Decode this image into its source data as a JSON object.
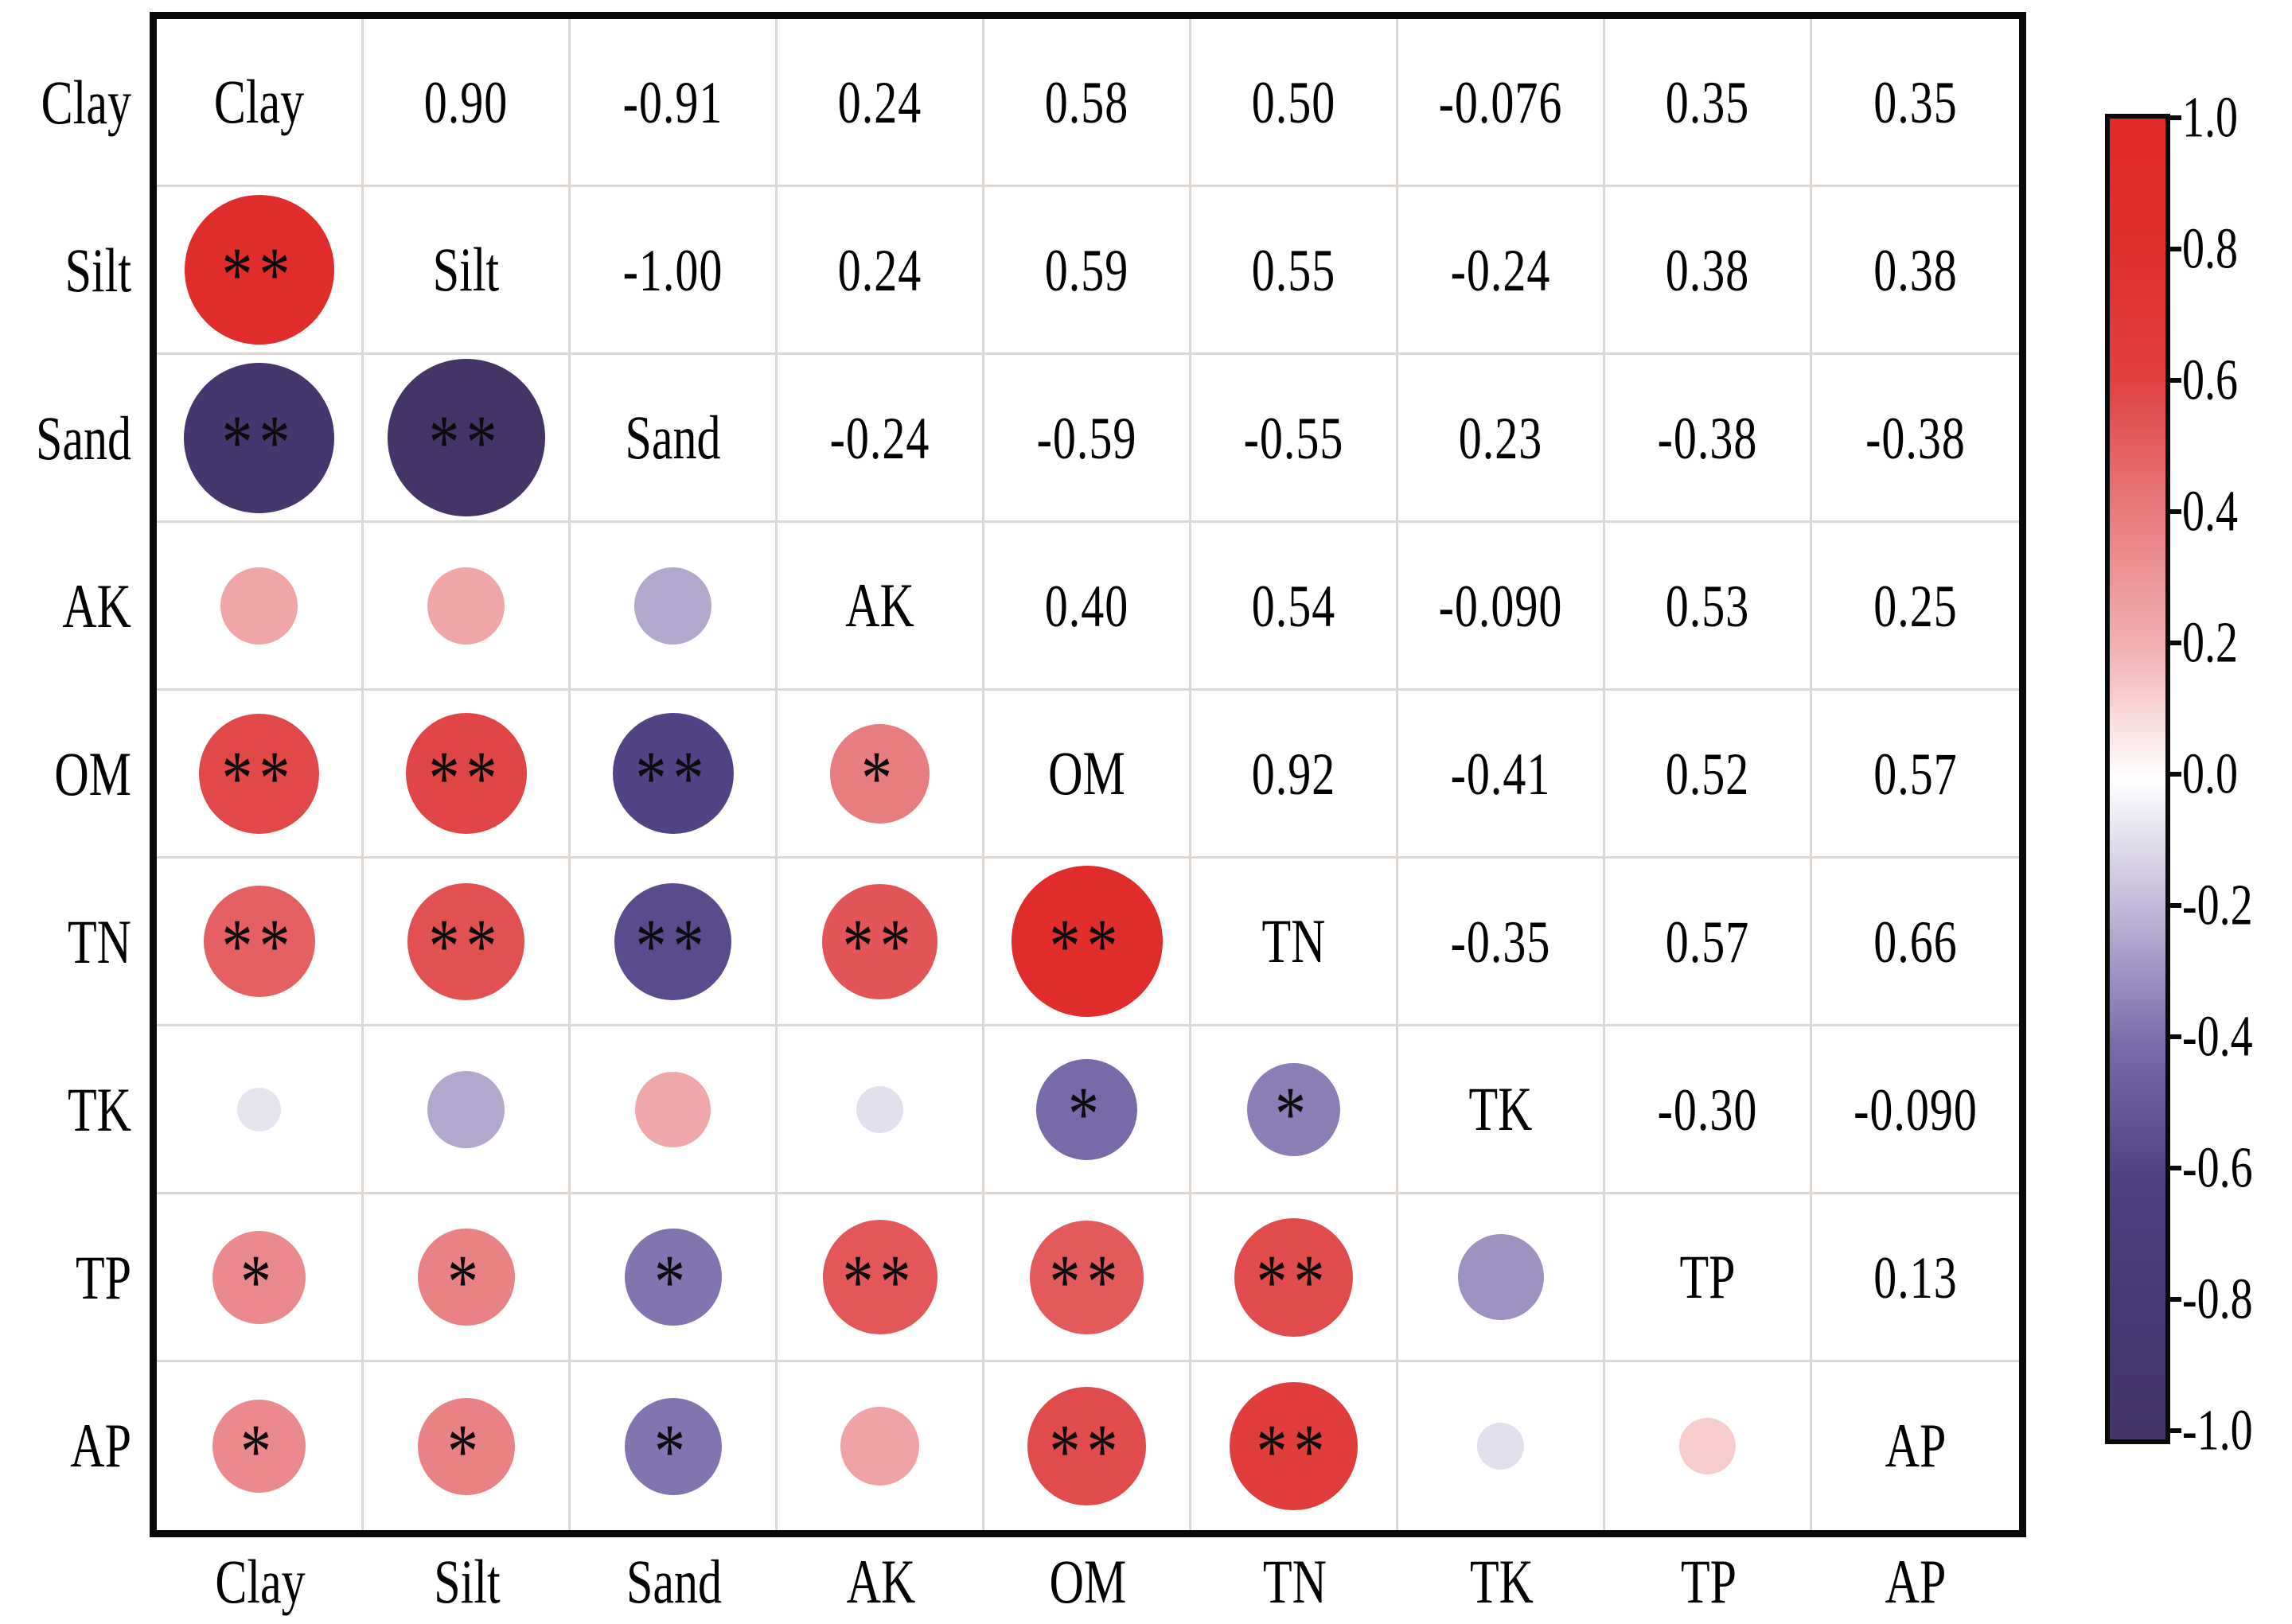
{
  "figure_type": "correlation-bubble-matrix",
  "chart_data": {
    "type": "heatmap",
    "subtype": "correlation-matrix",
    "variables": [
      "Clay",
      "Silt",
      "Sand",
      "AK",
      "OM",
      "TN",
      "TK",
      "TP",
      "AP"
    ],
    "matrix": [
      [
        null,
        0.9,
        -0.91,
        0.24,
        0.58,
        0.5,
        -0.076,
        0.35,
        0.35
      ],
      [
        0.9,
        null,
        -1.0,
        0.24,
        0.59,
        0.55,
        -0.24,
        0.38,
        0.38
      ],
      [
        -0.91,
        -1.0,
        null,
        -0.24,
        -0.59,
        -0.55,
        0.23,
        -0.38,
        -0.38
      ],
      [
        0.24,
        0.24,
        -0.24,
        null,
        0.4,
        0.54,
        -0.09,
        0.53,
        0.25
      ],
      [
        0.58,
        0.59,
        -0.59,
        0.4,
        null,
        0.92,
        -0.41,
        0.52,
        0.57
      ],
      [
        0.5,
        0.55,
        -0.55,
        0.54,
        0.92,
        null,
        -0.35,
        0.57,
        0.66
      ],
      [
        -0.076,
        -0.24,
        0.23,
        -0.09,
        -0.41,
        -0.35,
        null,
        -0.3,
        -0.09
      ],
      [
        0.35,
        0.38,
        -0.38,
        0.53,
        0.52,
        0.57,
        -0.3,
        null,
        0.13
      ],
      [
        0.35,
        0.38,
        -0.38,
        0.25,
        0.57,
        0.66,
        -0.09,
        0.13,
        null
      ]
    ],
    "display_values": [
      [
        null,
        "0.90",
        "-0.91",
        "0.24",
        "0.58",
        "0.50",
        "-0.076",
        "0.35",
        "0.35"
      ],
      [
        null,
        null,
        "-1.00",
        "0.24",
        "0.59",
        "0.55",
        "-0.24",
        "0.38",
        "0.38"
      ],
      [
        null,
        null,
        null,
        "-0.24",
        "-0.59",
        "-0.55",
        "0.23",
        "-0.38",
        "-0.38"
      ],
      [
        null,
        null,
        null,
        null,
        "0.40",
        "0.54",
        "-0.090",
        "0.53",
        "0.25"
      ],
      [
        null,
        null,
        null,
        null,
        null,
        "0.92",
        "-0.41",
        "0.52",
        "0.57"
      ],
      [
        null,
        null,
        null,
        null,
        null,
        null,
        "-0.35",
        "0.57",
        "0.66"
      ],
      [
        null,
        null,
        null,
        null,
        null,
        null,
        null,
        "-0.30",
        "-0.090"
      ],
      [
        null,
        null,
        null,
        null,
        null,
        null,
        null,
        null,
        "0.13"
      ],
      [
        null,
        null,
        null,
        null,
        null,
        null,
        null,
        null,
        null
      ]
    ],
    "significance": [
      [],
      [
        "**"
      ],
      [
        "**",
        "**"
      ],
      [
        "",
        "",
        ""
      ],
      [
        "**",
        "**",
        "**",
        "*"
      ],
      [
        "**",
        "**",
        "**",
        "**",
        "**"
      ],
      [
        "",
        "",
        "",
        "",
        "*",
        "*"
      ],
      [
        "*",
        "*",
        "*",
        "**",
        "**",
        "**",
        ""
      ],
      [
        "*",
        "*",
        "*",
        "",
        "**",
        "**",
        "",
        ""
      ]
    ],
    "legend": {
      "position": "right",
      "range": [
        -1.0,
        1.0
      ],
      "tick_labels": [
        "1.0",
        "0.8",
        "0.6",
        "0.4",
        "0.2",
        "0.0",
        "-0.2",
        "-0.4",
        "-0.6",
        "-0.8",
        "-1.0"
      ]
    },
    "colormap_stops": [
      {
        "v": 1.0,
        "c": "#e02927"
      },
      {
        "v": 0.8,
        "c": "#df302e"
      },
      {
        "v": 0.6,
        "c": "#e04242"
      },
      {
        "v": 0.4,
        "c": "#e87d80"
      },
      {
        "v": 0.2,
        "c": "#f2b0b1"
      },
      {
        "v": 0.0,
        "c": "#ffffff"
      },
      {
        "v": -0.2,
        "c": "#c0b7d7"
      },
      {
        "v": -0.4,
        "c": "#7a6caa"
      },
      {
        "v": -0.6,
        "c": "#504282"
      },
      {
        "v": -0.8,
        "c": "#473974"
      },
      {
        "v": -1.0,
        "c": "#443467"
      }
    ]
  },
  "colors": {
    "border": "#0a0a0a",
    "gridline": "#dcd7d2",
    "star": "#0c0c0c",
    "text": "#000000",
    "background": "#ffffff"
  }
}
